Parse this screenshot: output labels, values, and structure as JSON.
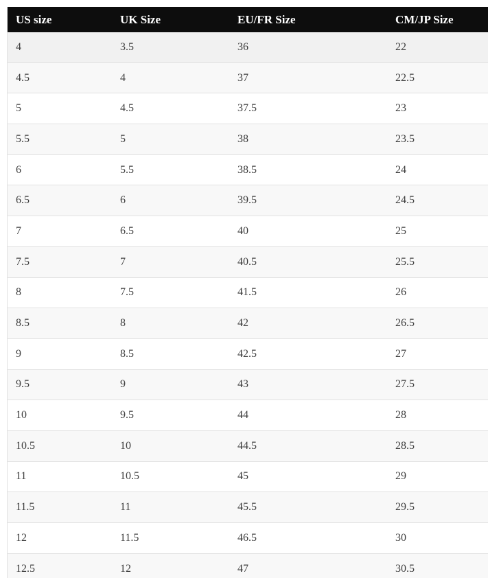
{
  "chart_data": {
    "type": "table",
    "columns": [
      "US size",
      "UK Size",
      "EU/FR Size",
      "CM/JP Size"
    ],
    "rows": [
      [
        "4",
        "3.5",
        "36",
        "22"
      ],
      [
        "4.5",
        "4",
        "37",
        "22.5"
      ],
      [
        "5",
        "4.5",
        "37.5",
        "23"
      ],
      [
        "5.5",
        "5",
        "38",
        "23.5"
      ],
      [
        "6",
        "5.5",
        "38.5",
        "24"
      ],
      [
        "6.5",
        "6",
        "39.5",
        "24.5"
      ],
      [
        "7",
        "6.5",
        "40",
        "25"
      ],
      [
        "7.5",
        "7",
        "40.5",
        "25.5"
      ],
      [
        "8",
        "7.5",
        "41.5",
        "26"
      ],
      [
        "8.5",
        "8",
        "42",
        "26.5"
      ],
      [
        "9",
        "8.5",
        "42.5",
        "27"
      ],
      [
        "9.5",
        "9",
        "43",
        "27.5"
      ],
      [
        "10",
        "9.5",
        "44",
        "28"
      ],
      [
        "10.5",
        "10",
        "44.5",
        "28.5"
      ],
      [
        "11",
        "10.5",
        "45",
        "29"
      ],
      [
        "11.5",
        "11",
        "45.5",
        "29.5"
      ],
      [
        "12",
        "11.5",
        "46.5",
        "30"
      ],
      [
        "12.5",
        "12",
        "47",
        "30.5"
      ]
    ]
  },
  "colors": {
    "header_bg": "#0d0d0d",
    "header_text": "#ffffff",
    "stripe_bg": "#f8f8f8",
    "hover_row_bg": "#f1f1f1",
    "border": "#e1e1e1",
    "cell_text": "#3d3d3d"
  }
}
